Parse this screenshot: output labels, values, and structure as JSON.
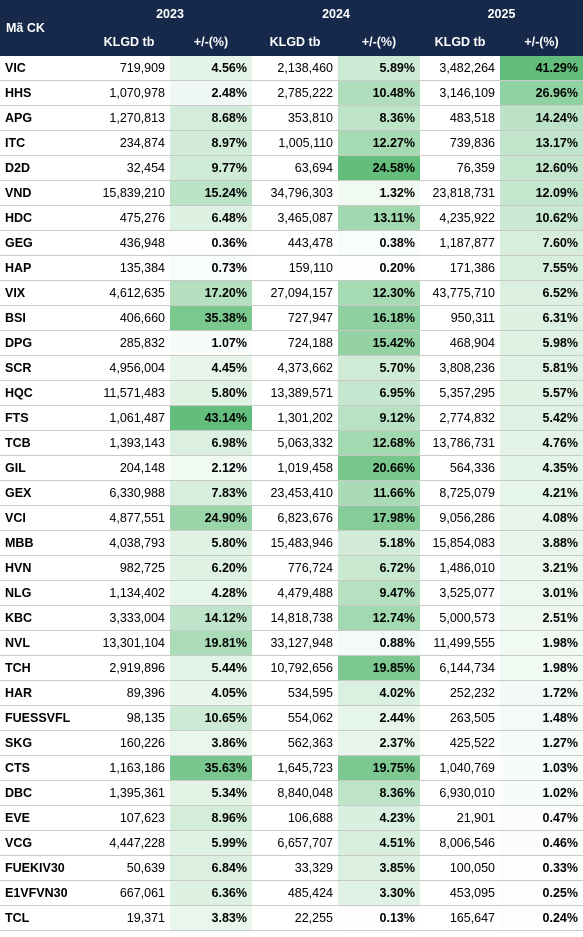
{
  "table": {
    "code_header": "Mã CK",
    "year_groups": [
      {
        "year": "2023",
        "columns": [
          "KLGD tb",
          "+/-(%)"
        ]
      },
      {
        "year": "2024",
        "columns": [
          "KLGD tb",
          "+/-(%)"
        ]
      },
      {
        "year": "2025",
        "columns": [
          "KLGD tb",
          "+/-(%)"
        ]
      }
    ],
    "rows": [
      [
        "VIC",
        "719,909",
        "4.56%",
        "2,138,460",
        "5.89%",
        "3,482,264",
        "41.29%"
      ],
      [
        "HHS",
        "1,070,978",
        "2.48%",
        "2,785,222",
        "10.48%",
        "3,146,109",
        "26.96%"
      ],
      [
        "APG",
        "1,270,813",
        "8.68%",
        "353,810",
        "8.36%",
        "483,518",
        "14.24%"
      ],
      [
        "ITC",
        "234,874",
        "8.97%",
        "1,005,110",
        "12.27%",
        "739,836",
        "13.17%"
      ],
      [
        "D2D",
        "32,454",
        "9.77%",
        "63,694",
        "24.58%",
        "76,359",
        "12.60%"
      ],
      [
        "VND",
        "15,839,210",
        "15.24%",
        "34,796,303",
        "1.32%",
        "23,818,731",
        "12.09%"
      ],
      [
        "HDC",
        "475,276",
        "6.48%",
        "3,465,087",
        "13.11%",
        "4,235,922",
        "10.62%"
      ],
      [
        "GEG",
        "436,948",
        "0.36%",
        "443,478",
        "0.38%",
        "1,187,877",
        "7.60%"
      ],
      [
        "HAP",
        "135,384",
        "0.73%",
        "159,110",
        "0.20%",
        "171,386",
        "7.55%"
      ],
      [
        "VIX",
        "4,612,635",
        "17.20%",
        "27,094,157",
        "12.30%",
        "43,775,710",
        "6.52%"
      ],
      [
        "BSI",
        "406,660",
        "35.38%",
        "727,947",
        "16.18%",
        "950,311",
        "6.31%"
      ],
      [
        "DPG",
        "285,832",
        "1.07%",
        "724,188",
        "15.42%",
        "468,904",
        "5.98%"
      ],
      [
        "SCR",
        "4,956,004",
        "4.45%",
        "4,373,662",
        "5.70%",
        "3,808,236",
        "5.81%"
      ],
      [
        "HQC",
        "11,571,483",
        "5.80%",
        "13,389,571",
        "6.95%",
        "5,357,295",
        "5.57%"
      ],
      [
        "FTS",
        "1,061,487",
        "43.14%",
        "1,301,202",
        "9.12%",
        "2,774,832",
        "5.42%"
      ],
      [
        "TCB",
        "1,393,143",
        "6.98%",
        "5,063,332",
        "12.68%",
        "13,786,731",
        "4.76%"
      ],
      [
        "GIL",
        "204,148",
        "2.12%",
        "1,019,458",
        "20.66%",
        "564,336",
        "4.35%"
      ],
      [
        "GEX",
        "6,330,988",
        "7.83%",
        "23,453,410",
        "11.66%",
        "8,725,079",
        "4.21%"
      ],
      [
        "VCI",
        "4,877,551",
        "24.90%",
        "6,823,676",
        "17.98%",
        "9,056,286",
        "4.08%"
      ],
      [
        "MBB",
        "4,038,793",
        "5.80%",
        "15,483,946",
        "5.18%",
        "15,854,083",
        "3.88%"
      ],
      [
        "HVN",
        "982,725",
        "6.20%",
        "776,724",
        "6.72%",
        "1,486,010",
        "3.21%"
      ],
      [
        "NLG",
        "1,134,402",
        "4.28%",
        "4,479,488",
        "9.47%",
        "3,525,077",
        "3.01%"
      ],
      [
        "KBC",
        "3,333,004",
        "14.12%",
        "14,818,738",
        "12.74%",
        "5,000,573",
        "2.51%"
      ],
      [
        "NVL",
        "13,301,104",
        "19.81%",
        "33,127,948",
        "0.88%",
        "11,499,555",
        "1.98%"
      ],
      [
        "TCH",
        "2,919,896",
        "5.44%",
        "10,792,656",
        "19.85%",
        "6,144,734",
        "1.98%"
      ],
      [
        "HAR",
        "89,396",
        "4.05%",
        "534,595",
        "4.02%",
        "252,232",
        "1.72%"
      ],
      [
        "FUESSVFL",
        "98,135",
        "10.65%",
        "554,062",
        "2.44%",
        "263,505",
        "1.48%"
      ],
      [
        "SKG",
        "160,226",
        "3.86%",
        "562,363",
        "2.37%",
        "425,522",
        "1.27%"
      ],
      [
        "CTS",
        "1,163,186",
        "35.63%",
        "1,645,723",
        "19.75%",
        "1,040,769",
        "1.03%"
      ],
      [
        "DBC",
        "1,395,361",
        "5.34%",
        "8,840,048",
        "8.36%",
        "6,930,010",
        "1.02%"
      ],
      [
        "EVE",
        "107,623",
        "8.96%",
        "106,688",
        "4.23%",
        "21,901",
        "0.47%"
      ],
      [
        "VCG",
        "4,447,228",
        "5.99%",
        "6,657,707",
        "4.51%",
        "8,006,546",
        "0.46%"
      ],
      [
        "FUEKIV30",
        "50,639",
        "6.84%",
        "33,329",
        "3.85%",
        "100,050",
        "0.33%"
      ],
      [
        "E1VFVN30",
        "667,061",
        "6.36%",
        "485,424",
        "3.30%",
        "453,095",
        "0.25%"
      ],
      [
        "TCL",
        "19,371",
        "3.83%",
        "22,255",
        "0.13%",
        "165,647",
        "0.24%"
      ]
    ]
  }
}
